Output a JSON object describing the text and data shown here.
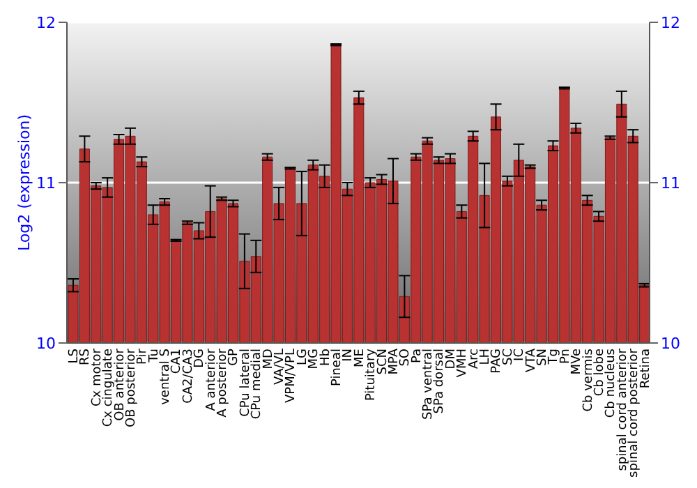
{
  "chart_data": {
    "type": "bar",
    "ylabel": "Log2 (expression)",
    "categories": [
      "LS",
      "RS",
      "Cx motor",
      "Cx cingulate",
      "OB anterior",
      "OB posterior",
      "Pir",
      "Tu",
      "ventral S",
      "CA1",
      "CA2/CA3",
      "DG",
      "A anterior",
      "A posterior",
      "GP",
      "CPu lateral",
      "CPu medial",
      "MD",
      "VA/VL",
      "VPM/VPL",
      "LG",
      "MG",
      "Hb",
      "Pineal",
      "IN",
      "ME",
      "Pituitary",
      "SCN",
      "MPA",
      "SO",
      "Pa",
      "SPa ventral",
      "SPa dorsal",
      "DM",
      "VMH",
      "Arc",
      "LH",
      "PAG",
      "SC",
      "IC",
      "VTA",
      "SN",
      "Tg",
      "Pn",
      "MVe",
      "Cb vermis",
      "Cb lobe",
      "Cb nucleus",
      "spinal cord anterior",
      "spinal cord posterior",
      "Retina"
    ],
    "values": [
      10.36,
      11.21,
      10.98,
      10.97,
      11.27,
      11.29,
      11.13,
      10.8,
      10.88,
      10.64,
      10.75,
      10.7,
      10.82,
      10.9,
      10.87,
      10.51,
      10.54,
      11.16,
      10.87,
      11.09,
      10.87,
      11.11,
      11.04,
      11.86,
      10.96,
      11.53,
      11.0,
      11.02,
      11.01,
      10.29,
      11.16,
      11.26,
      11.14,
      11.15,
      10.82,
      11.29,
      10.92,
      11.41,
      11.01,
      11.14,
      11.1,
      10.86,
      11.23,
      11.59,
      11.34,
      10.89,
      10.79,
      11.28,
      11.49,
      11.29,
      10.36
    ],
    "errors": [
      0.04,
      0.08,
      0.02,
      0.06,
      0.03,
      0.05,
      0.03,
      0.06,
      0.02,
      0.005,
      0.01,
      0.05,
      0.16,
      0.01,
      0.02,
      0.17,
      0.1,
      0.02,
      0.1,
      0.005,
      0.2,
      0.03,
      0.07,
      0.005,
      0.04,
      0.04,
      0.03,
      0.03,
      0.14,
      0.13,
      0.02,
      0.02,
      0.02,
      0.03,
      0.04,
      0.03,
      0.2,
      0.08,
      0.03,
      0.1,
      0.01,
      0.03,
      0.03,
      0.005,
      0.03,
      0.03,
      0.03,
      0.01,
      0.08,
      0.04,
      0.01
    ],
    "color": "#b83232",
    "ylim": [
      10,
      12
    ],
    "yticks": [
      10,
      11,
      12
    ],
    "y2lim": [
      10,
      12
    ],
    "y2ticks": [
      10,
      11,
      12
    ],
    "grid": "y"
  }
}
